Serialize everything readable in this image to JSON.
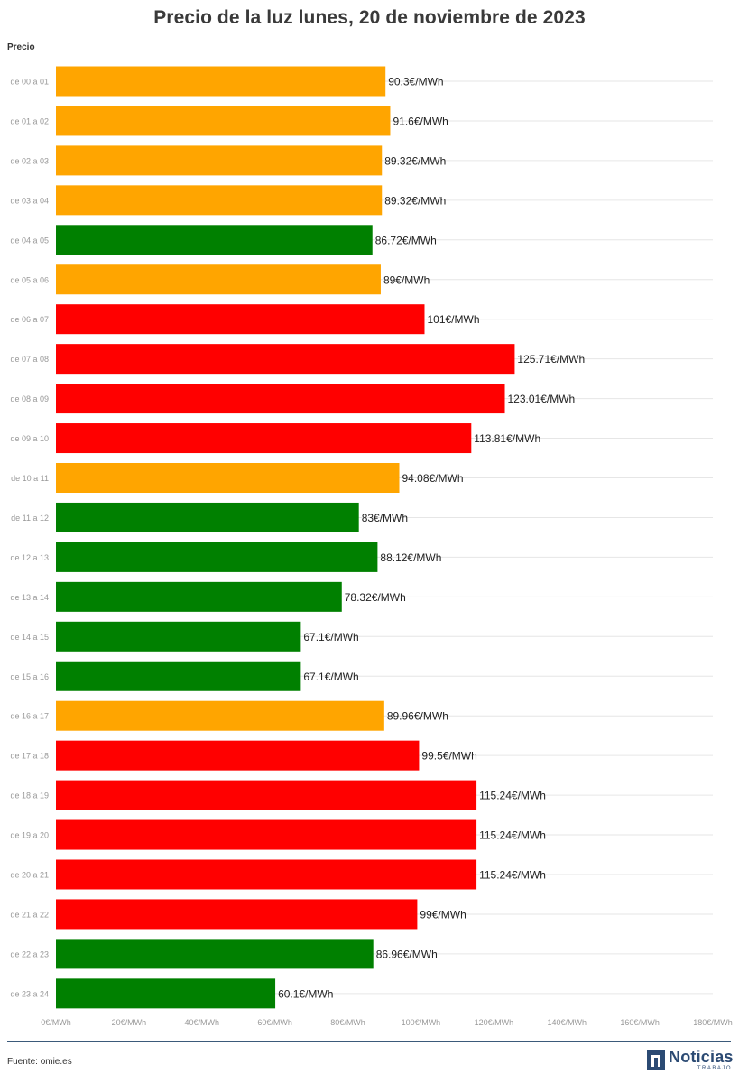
{
  "header": {
    "title": "Precio de la luz lunes, 20 de noviembre de 2023",
    "subtitle": "Precio"
  },
  "footer": {
    "source": "Fuente: omie.es",
    "logo_word": "Noticias",
    "logo_sub": "TRABAJO"
  },
  "colors": {
    "high": "#ff0000",
    "medium": "#ffa500",
    "low": "#008000",
    "grid": "#e6e6e6",
    "tick_text": "#999999",
    "label_text": "#999999",
    "value_text": "#222222",
    "logo": "#2b4a73"
  },
  "chart_data": {
    "type": "bar",
    "orientation": "horizontal",
    "title": "Precio de la luz lunes, 20 de noviembre de 2023",
    "ylabel": "Precio",
    "xlabel": "",
    "categories": [
      "de 00 a 01",
      "de 01 a 02",
      "de 02 a 03",
      "de 03 a 04",
      "de 04 a 05",
      "de 05 a 06",
      "de 06 a 07",
      "de 07 a 08",
      "de 08 a 09",
      "de 09 a 10",
      "de 10 a 11",
      "de 11 a 12",
      "de 12 a 13",
      "de 13 a 14",
      "de 14 a 15",
      "de 15 a 16",
      "de 16 a 17",
      "de 17 a 18",
      "de 18 a 19",
      "de 19 a 20",
      "de 20 a 21",
      "de 21 a 22",
      "de 22 a 23",
      "de 23 a 24"
    ],
    "values": [
      90.3,
      91.6,
      89.32,
      89.32,
      86.72,
      89,
      101,
      125.71,
      123.01,
      113.81,
      94.08,
      83,
      88.12,
      78.32,
      67.1,
      67.1,
      89.96,
      99.5,
      115.24,
      115.24,
      115.24,
      99,
      86.96,
      60.1
    ],
    "value_labels": [
      "90.3€/MWh",
      "91.6€/MWh",
      "89.32€/MWh",
      "89.32€/MWh",
      "86.72€/MWh",
      "89€/MWh",
      "101€/MWh",
      "125.71€/MWh",
      "123.01€/MWh",
      "113.81€/MWh",
      "94.08€/MWh",
      "83€/MWh",
      "88.12€/MWh",
      "78.32€/MWh",
      "67.1€/MWh",
      "67.1€/MWh",
      "89.96€/MWh",
      "99.5€/MWh",
      "115.24€/MWh",
      "115.24€/MWh",
      "115.24€/MWh",
      "99€/MWh",
      "86.96€/MWh",
      "60.1€/MWh"
    ],
    "levels": [
      "medium",
      "medium",
      "medium",
      "medium",
      "low",
      "medium",
      "high",
      "high",
      "high",
      "high",
      "medium",
      "low",
      "low",
      "low",
      "low",
      "low",
      "medium",
      "high",
      "high",
      "high",
      "high",
      "high",
      "low",
      "low"
    ],
    "xlim": [
      0,
      180
    ],
    "xticks": [
      0,
      20,
      40,
      60,
      80,
      100,
      120,
      140,
      160,
      180
    ],
    "xtick_labels": [
      "0€/MWh",
      "20€/MWh",
      "40€/MWh",
      "60€/MWh",
      "80€/MWh",
      "100€/MWh",
      "120€/MWh",
      "140€/MWh",
      "160€/MWh",
      "180€/MWh"
    ],
    "grid": true,
    "legend": "none"
  }
}
